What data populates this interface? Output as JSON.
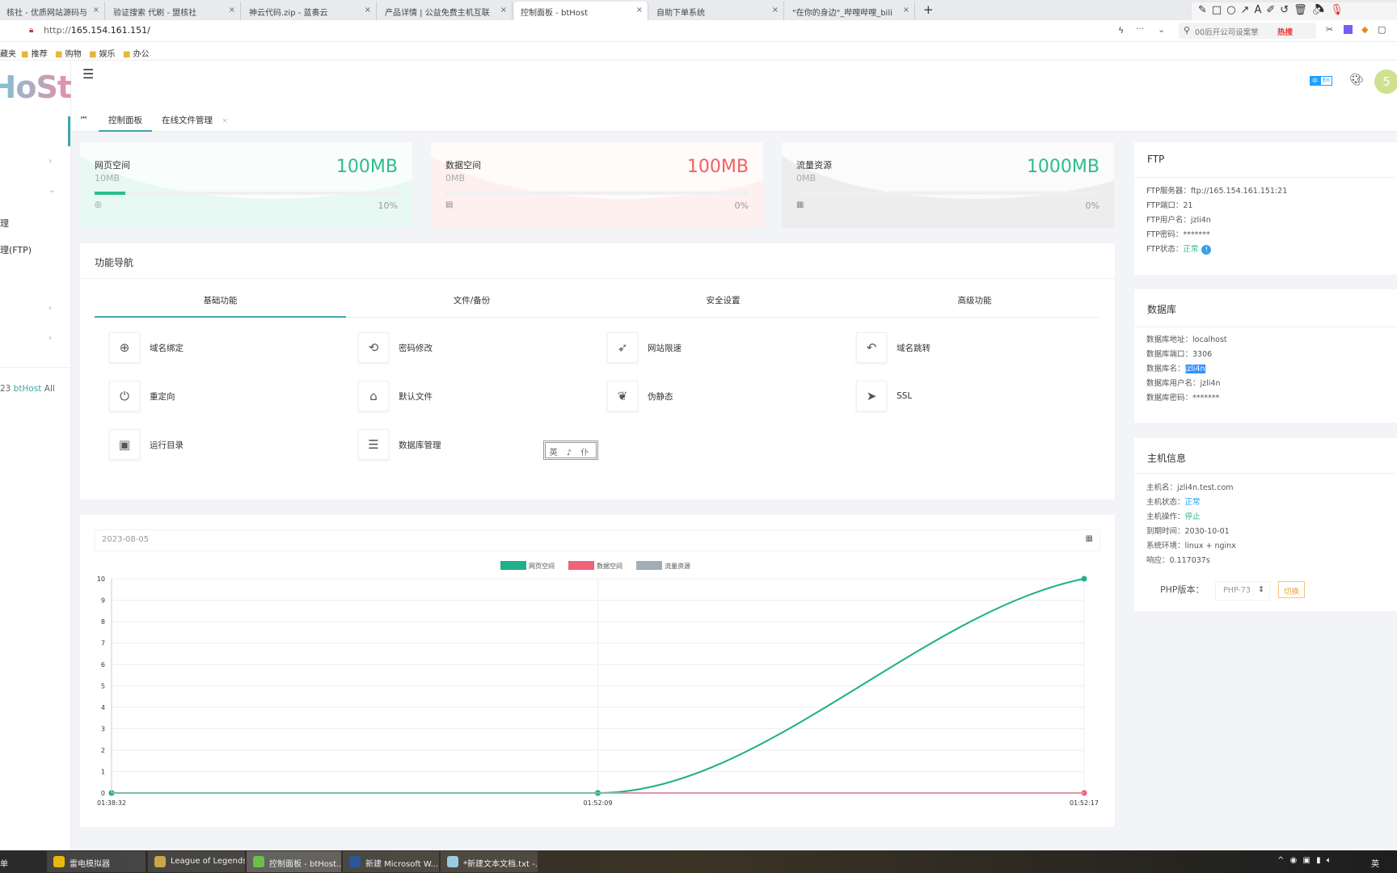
{
  "browser": {
    "tabs": [
      {
        "label": "核社 - 优质网站源码与插件"
      },
      {
        "label": "验证搜索 代刷 - 盟核社"
      },
      {
        "label": "神云代码.zip - 蓝奏云"
      },
      {
        "label": "产品详情 | 公益免费主机互联"
      },
      {
        "label": "控制面板 - btHost",
        "active": true
      },
      {
        "label": "自助下单系统"
      },
      {
        "label": "\"在你的身边\"_哔哩哔哩_bili"
      }
    ],
    "new_tab": "+",
    "url_prefix": "http://",
    "url_host": "165.154.161.151/",
    "search_placeholder": "00后开公司设案掌",
    "hot_label": "热搜",
    "bookmarks": [
      "藏夹",
      "推荐",
      "购物",
      "娱乐",
      "办公"
    ]
  },
  "sidebar": {
    "logo": "HoSt",
    "items": [
      {
        "label": "理"
      },
      {
        "label": "理(FTP)"
      }
    ],
    "footer_year": "23",
    "footer_brand": "btHost",
    "footer_rest": "All"
  },
  "header": {
    "lang_zh": "中",
    "lang_en": "En",
    "avatar": "5",
    "tabs": [
      {
        "label": "控制面板",
        "active": true
      },
      {
        "label": "在线文件管理"
      }
    ]
  },
  "stats": [
    {
      "title": "网页空间",
      "used": "10MB",
      "total": "100MB",
      "percent": 10,
      "percent_label": "10%",
      "color": "#2bbd8e",
      "bg": "#e8f8f3"
    },
    {
      "title": "数据空间",
      "used": "0MB",
      "total": "100MB",
      "percent": 0,
      "percent_label": "0%",
      "color": "#f0625f",
      "bg": "#fdf0ef"
    },
    {
      "title": "流量资源",
      "used": "0MB",
      "total": "1000MB",
      "percent": 0,
      "percent_label": "0%",
      "color": "#2bbd8e",
      "bg": "#ededed"
    }
  ],
  "functions": {
    "title": "功能导航",
    "tabs": [
      "基础功能",
      "文件/备份",
      "安全设置",
      "高级功能"
    ],
    "items": [
      {
        "label": "域名绑定",
        "icon": "globe-icon",
        "glyph": "⊕"
      },
      {
        "label": "密码修改",
        "icon": "password-reset-icon",
        "glyph": "⟲"
      },
      {
        "label": "网站限速",
        "icon": "rocket-icon",
        "glyph": "➶"
      },
      {
        "label": "域名跳转",
        "icon": "undo-icon",
        "glyph": "↶"
      },
      {
        "label": "重定向",
        "icon": "power-icon",
        "glyph": "⏻"
      },
      {
        "label": "默认文件",
        "icon": "home-icon",
        "glyph": "⌂"
      },
      {
        "label": "伪静态",
        "icon": "leaf-icon",
        "glyph": "❦"
      },
      {
        "label": "SSL",
        "icon": "send-icon",
        "glyph": "➤"
      },
      {
        "label": "运行目录",
        "icon": "folder-icon",
        "glyph": "▣"
      },
      {
        "label": "数据库管理",
        "icon": "database-icon",
        "glyph": "☰"
      }
    ],
    "stamp": "英 ♪ 仆"
  },
  "chart_data": {
    "type": "line",
    "date": "2023-08-05",
    "categories": [
      "01:38:32",
      "01:52:09",
      "01:52:17"
    ],
    "series": [
      {
        "name": "网页空间",
        "values": [
          0,
          0,
          10
        ],
        "color": "#1fb08a"
      },
      {
        "name": "数据空间",
        "values": [
          0,
          0,
          0
        ],
        "color": "#f0627a"
      },
      {
        "name": "流量资源",
        "values": [
          0,
          0,
          0
        ],
        "color": "#a3adb8"
      }
    ],
    "ylim": [
      0,
      10
    ],
    "yticks": [
      0,
      1,
      2,
      3,
      4,
      5,
      6,
      7,
      8,
      9,
      10
    ],
    "legend": "top-center",
    "grid": true
  },
  "ftp": {
    "title": "FTP",
    "rows": [
      {
        "label": "FTP服务器：",
        "value": "ftp://165.154.161.151:21"
      },
      {
        "label": "FTP端口：",
        "value": "21"
      },
      {
        "label": "FTP用户名：",
        "value": "jzli4n"
      },
      {
        "label": "FTP密码：",
        "value": "*******"
      }
    ],
    "status_label": "FTP状态：",
    "status_value": "正常",
    "status_color": "#2bbd8e"
  },
  "database": {
    "title": "数据库",
    "rows": [
      {
        "label": "数据库地址：",
        "value": "localhost"
      },
      {
        "label": "数据库端口：",
        "value": "3306"
      },
      {
        "label": "数据库名：",
        "value": "jzli4n",
        "selected": true
      },
      {
        "label": "数据库用户名：",
        "value": "jzli4n"
      },
      {
        "label": "数据库密码：",
        "value": "*******"
      }
    ]
  },
  "host": {
    "title": "主机信息",
    "rows": [
      {
        "label": "主机名：",
        "value": "jzli4n.test.com"
      },
      {
        "label": "主机状态：",
        "value": "正常",
        "color": "#1e9fff"
      },
      {
        "label": "主机操作：",
        "value": "停止",
        "color": "#2bbd8e"
      },
      {
        "label": "到期时间：",
        "value": "2030-10-01"
      },
      {
        "label": "系统环境：",
        "value": "linux + nginx"
      },
      {
        "label": "响应：",
        "value": "0.117037s"
      }
    ],
    "php_label": "PHP版本：",
    "php_value": "PHP-73",
    "switch_label": "切换"
  },
  "taskbar": {
    "start": "单",
    "items": [
      {
        "label": "雷电模拟器"
      },
      {
        "label": "League of Legends"
      },
      {
        "label": "控制面板 - btHost..."
      },
      {
        "label": "新建 Microsoft W..."
      },
      {
        "label": "*新建文本文档.txt -..."
      }
    ],
    "ime": "英"
  }
}
